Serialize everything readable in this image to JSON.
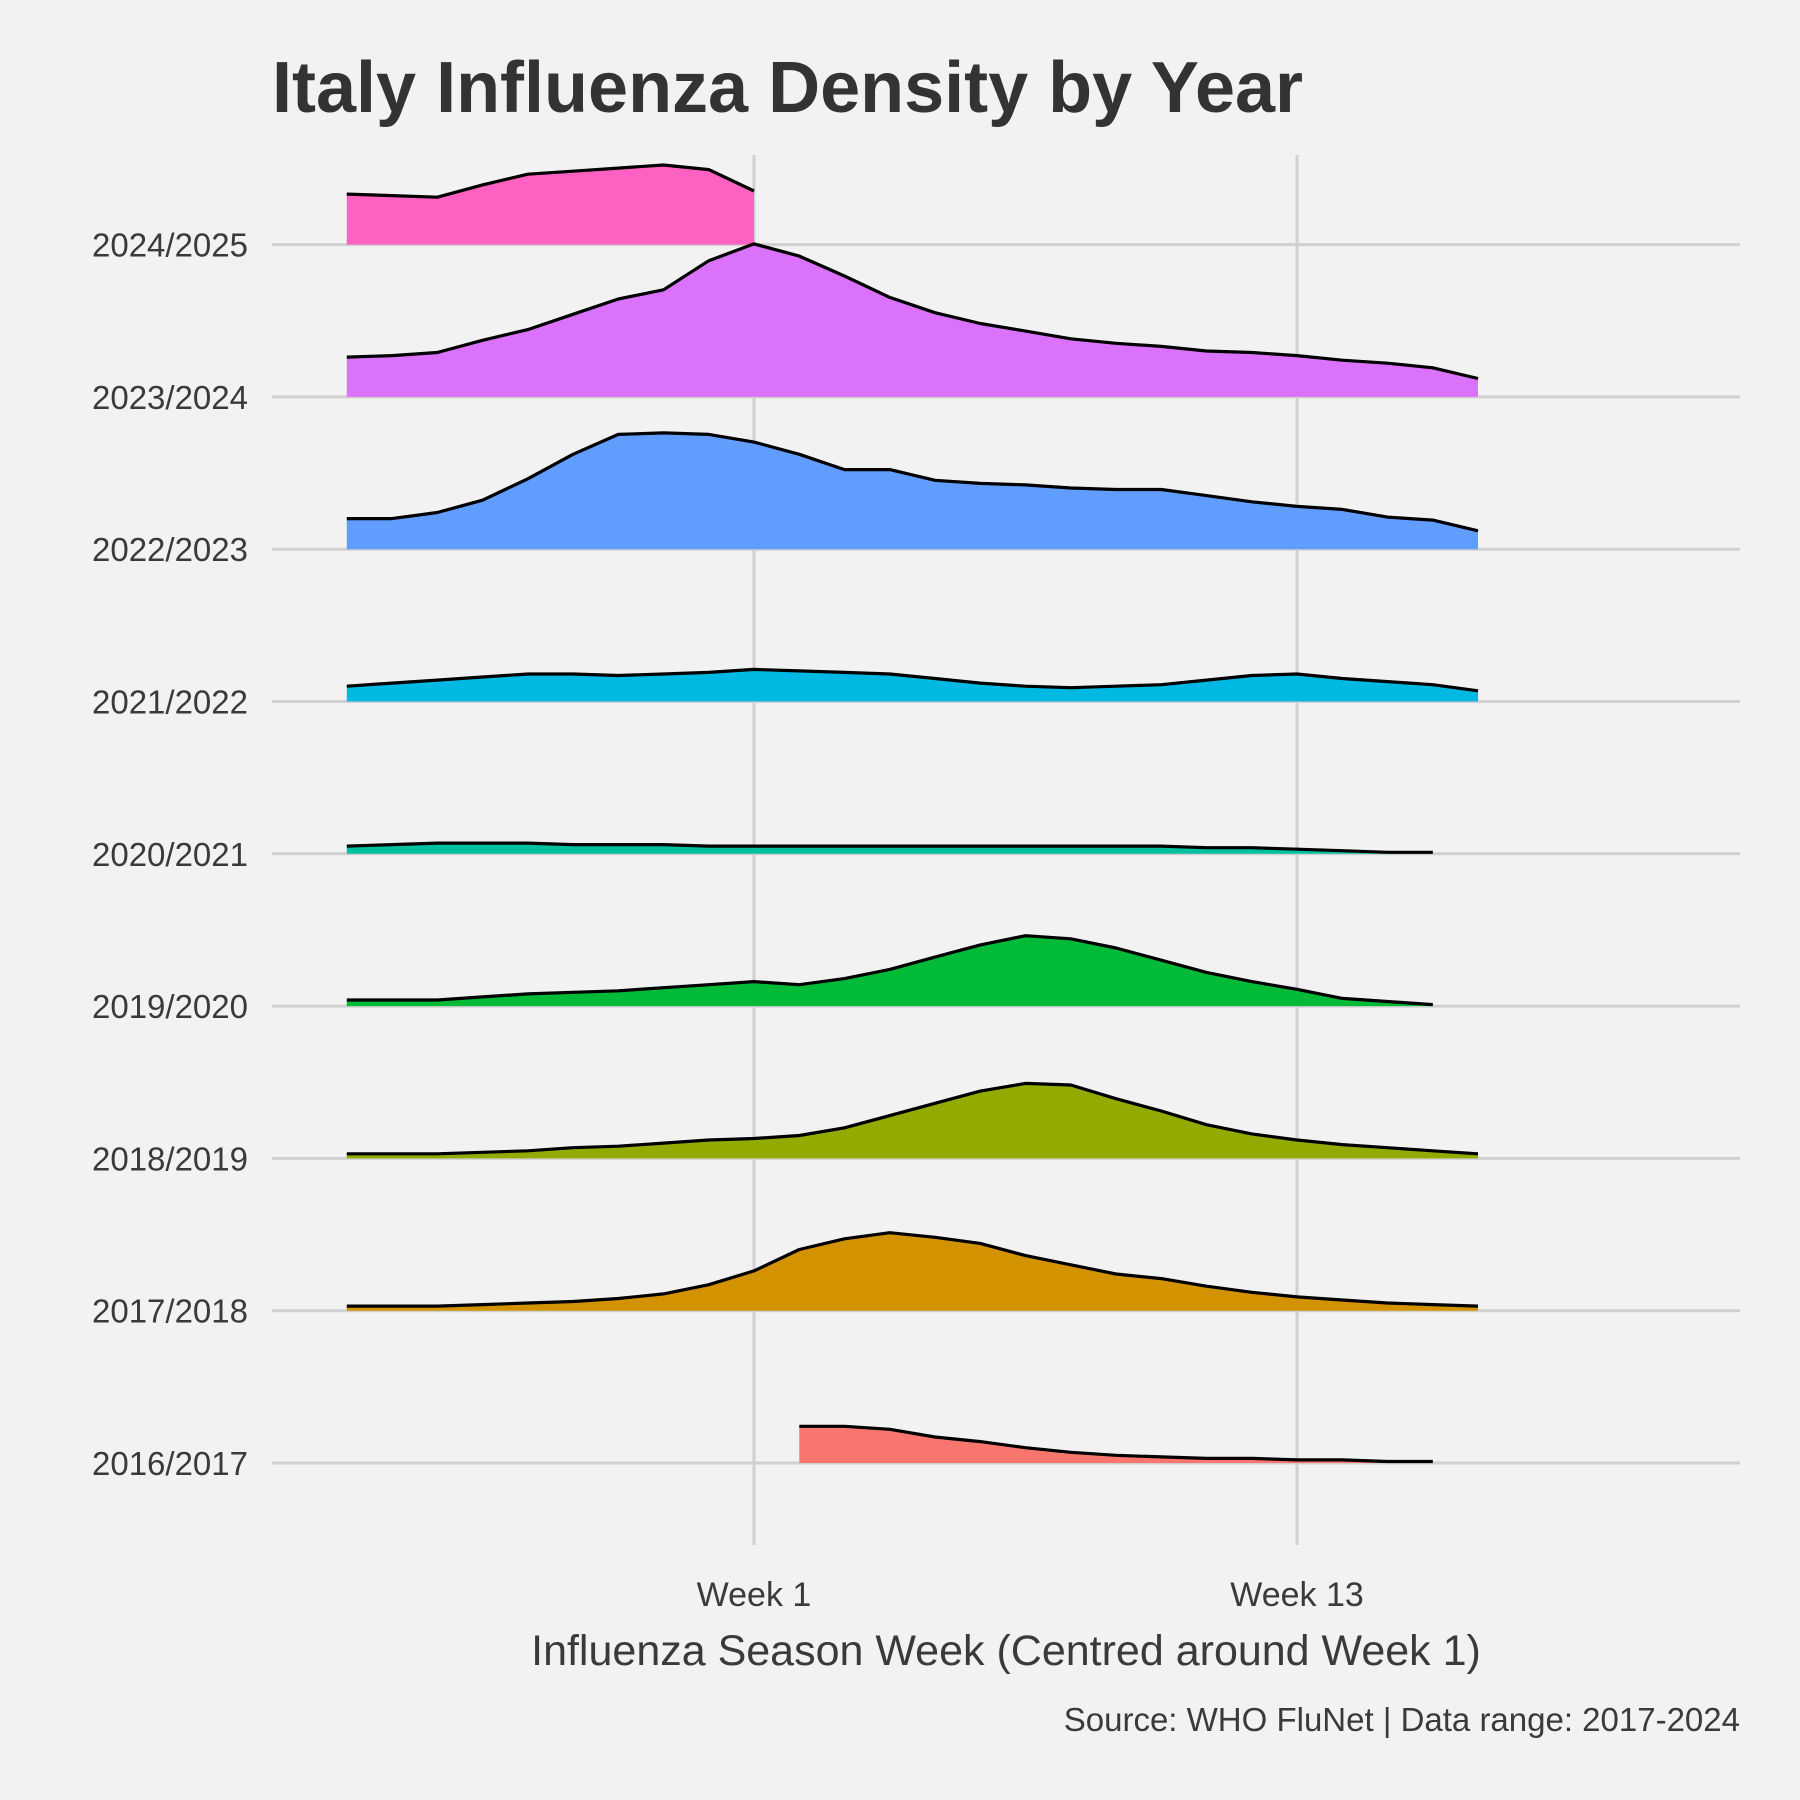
{
  "chart_data": {
    "type": "area",
    "title": "Italy Influenza Density by Year",
    "xlabel": "Influenza Season Week (Centred around Week 1)",
    "ylabel": "",
    "caption": "Source: WHO FluNet | Data range: 2017-2024",
    "x_ticks": [
      {
        "value": 1,
        "label": "Week 1"
      },
      {
        "value": 13,
        "label": "Week 13"
      }
    ],
    "xlim": [
      -9.6,
      23
    ],
    "grid": true,
    "legend": "none",
    "series": [
      {
        "name": "2016/2017",
        "color": "#F8766D",
        "x": [
          2,
          3,
          4,
          5,
          6,
          7,
          8,
          9,
          10,
          11,
          12,
          13,
          14,
          15,
          16
        ],
        "values": [
          0.24,
          0.24,
          0.22,
          0.17,
          0.14,
          0.1,
          0.07,
          0.05,
          0.04,
          0.03,
          0.03,
          0.02,
          0.02,
          0.01,
          0.01
        ]
      },
      {
        "name": "2017/2018",
        "color": "#D39200",
        "x": [
          -8,
          -7,
          -6,
          -5,
          -4,
          -3,
          -2,
          -1,
          0,
          1,
          2,
          3,
          4,
          5,
          6,
          7,
          8,
          9,
          10,
          11,
          12,
          13,
          14,
          15,
          16,
          17
        ],
        "values": [
          0.03,
          0.03,
          0.03,
          0.04,
          0.05,
          0.06,
          0.08,
          0.11,
          0.17,
          0.26,
          0.4,
          0.47,
          0.51,
          0.48,
          0.44,
          0.36,
          0.3,
          0.24,
          0.21,
          0.16,
          0.12,
          0.09,
          0.07,
          0.05,
          0.04,
          0.03
        ]
      },
      {
        "name": "2018/2019",
        "color": "#93AA00",
        "x": [
          -8,
          -7,
          -6,
          -5,
          -4,
          -3,
          -2,
          -1,
          0,
          1,
          2,
          3,
          4,
          5,
          6,
          7,
          8,
          9,
          10,
          11,
          12,
          13,
          14,
          15,
          16,
          17
        ],
        "values": [
          0.03,
          0.03,
          0.03,
          0.04,
          0.05,
          0.07,
          0.08,
          0.1,
          0.12,
          0.13,
          0.15,
          0.2,
          0.28,
          0.36,
          0.44,
          0.49,
          0.48,
          0.39,
          0.31,
          0.22,
          0.16,
          0.12,
          0.09,
          0.07,
          0.05,
          0.03
        ]
      },
      {
        "name": "2019/2020",
        "color": "#00BA38",
        "x": [
          -8,
          -7,
          -6,
          -5,
          -4,
          -3,
          -2,
          -1,
          0,
          1,
          2,
          3,
          4,
          5,
          6,
          7,
          8,
          9,
          10,
          11,
          12,
          13,
          14,
          15,
          16
        ],
        "values": [
          0.04,
          0.04,
          0.04,
          0.06,
          0.08,
          0.09,
          0.1,
          0.12,
          0.14,
          0.16,
          0.14,
          0.18,
          0.24,
          0.32,
          0.4,
          0.46,
          0.44,
          0.38,
          0.3,
          0.22,
          0.16,
          0.11,
          0.05,
          0.03,
          0.01
        ]
      },
      {
        "name": "2020/2021",
        "color": "#00C19F",
        "x": [
          -8,
          -7,
          -6,
          -5,
          -4,
          -3,
          -2,
          -1,
          0,
          1,
          2,
          3,
          4,
          5,
          6,
          7,
          8,
          9,
          10,
          11,
          12,
          13,
          14,
          15,
          16
        ],
        "values": [
          0.05,
          0.06,
          0.07,
          0.07,
          0.07,
          0.06,
          0.06,
          0.06,
          0.05,
          0.05,
          0.05,
          0.05,
          0.05,
          0.05,
          0.05,
          0.05,
          0.05,
          0.05,
          0.05,
          0.04,
          0.04,
          0.03,
          0.02,
          0.01,
          0.01
        ]
      },
      {
        "name": "2021/2022",
        "color": "#00B9E3",
        "x": [
          -8,
          -7,
          -6,
          -5,
          -4,
          -3,
          -2,
          -1,
          0,
          1,
          2,
          3,
          4,
          5,
          6,
          7,
          8,
          9,
          10,
          11,
          12,
          13,
          14,
          15,
          16,
          17
        ],
        "values": [
          0.1,
          0.12,
          0.14,
          0.16,
          0.18,
          0.18,
          0.17,
          0.18,
          0.19,
          0.21,
          0.2,
          0.19,
          0.18,
          0.15,
          0.12,
          0.1,
          0.09,
          0.1,
          0.11,
          0.14,
          0.17,
          0.18,
          0.15,
          0.13,
          0.11,
          0.07
        ]
      },
      {
        "name": "2022/2023",
        "color": "#619CFF",
        "x": [
          -8,
          -7,
          -6,
          -5,
          -4,
          -3,
          -2,
          -1,
          0,
          1,
          2,
          3,
          4,
          5,
          6,
          7,
          8,
          9,
          10,
          11,
          12,
          13,
          14,
          15,
          16,
          17
        ],
        "values": [
          0.2,
          0.2,
          0.24,
          0.32,
          0.46,
          0.62,
          0.75,
          0.76,
          0.75,
          0.7,
          0.62,
          0.52,
          0.52,
          0.45,
          0.43,
          0.42,
          0.4,
          0.39,
          0.39,
          0.35,
          0.31,
          0.28,
          0.26,
          0.21,
          0.19,
          0.12
        ]
      },
      {
        "name": "2023/2024",
        "color": "#DB72FB",
        "x": [
          -8,
          -7,
          -6,
          -5,
          -4,
          -3,
          -2,
          -1,
          0,
          1,
          2,
          3,
          4,
          5,
          6,
          7,
          8,
          9,
          10,
          11,
          12,
          13,
          14,
          15,
          16,
          17
        ],
        "values": [
          0.26,
          0.27,
          0.29,
          0.37,
          0.44,
          0.54,
          0.64,
          0.7,
          0.89,
          1.0,
          0.92,
          0.79,
          0.65,
          0.55,
          0.48,
          0.43,
          0.38,
          0.35,
          0.33,
          0.3,
          0.29,
          0.27,
          0.24,
          0.22,
          0.19,
          0.12
        ]
      },
      {
        "name": "2024/2025",
        "color": "#FF61C3",
        "x": [
          -8,
          -7,
          -6,
          -5,
          -4,
          -3,
          -2,
          -1,
          0,
          1
        ],
        "values": [
          0.33,
          0.32,
          0.31,
          0.39,
          0.46,
          0.48,
          0.5,
          0.52,
          0.49,
          0.35
        ]
      }
    ]
  }
}
